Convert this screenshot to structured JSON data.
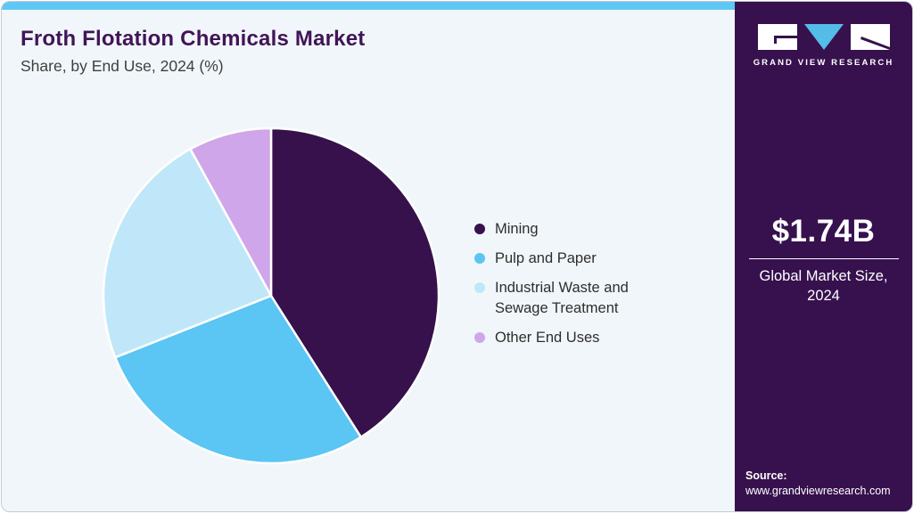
{
  "header": {
    "title": "Froth Flotation Chemicals Market",
    "subtitle": "Share, by End Use, 2024 (%)"
  },
  "chart_data": {
    "type": "pie",
    "title": "Froth Flotation Chemicals Market Share, by End Use, 2024 (%)",
    "categories": [
      "Mining",
      "Pulp and Paper",
      "Industrial Waste and Sewage Treatment",
      "Other End Uses"
    ],
    "values": [
      41,
      28,
      23,
      8
    ],
    "unit": "%",
    "colors": [
      "#36114b",
      "#5bc5f3",
      "#bfe7f9",
      "#d0a6ea"
    ],
    "start_angle_deg": 0,
    "direction": "clockwise",
    "legend_position": "right",
    "data_labels": false,
    "slice_gap_color": "#ffffff"
  },
  "sidebar": {
    "logo_text": "GRAND VIEW RESEARCH",
    "market_size_value": "$1.74B",
    "market_size_label_lines": [
      "Global Market Size,",
      "2024"
    ],
    "source_label": "Source:",
    "source_url": "www.grandviewresearch.com"
  },
  "colors": {
    "accent_bar": "#5fc8f2",
    "sidebar_bg": "#37114e",
    "title_text": "#411457",
    "logo_triangle": "#54bce9"
  }
}
